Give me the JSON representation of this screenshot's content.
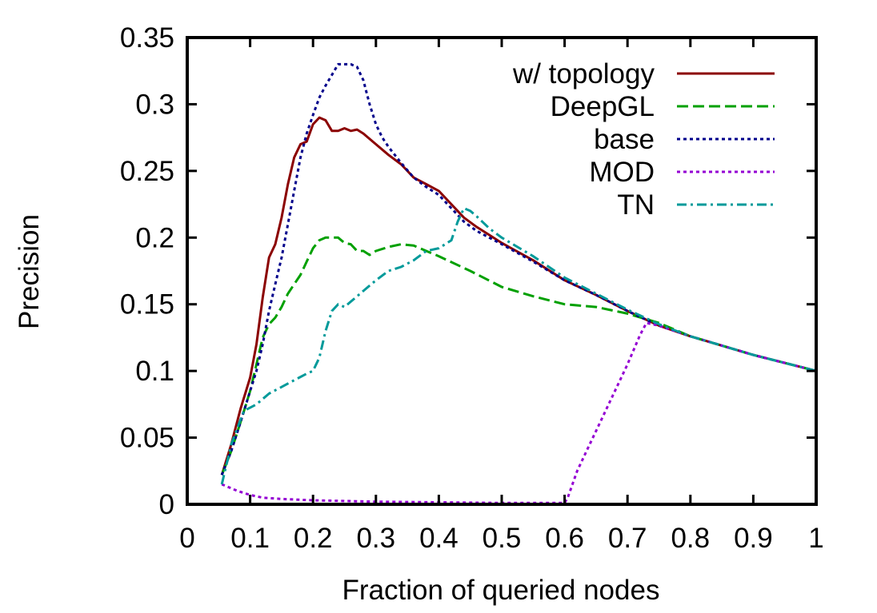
{
  "chart_data": {
    "type": "line",
    "title": "",
    "xlabel": "Fraction of queried nodes",
    "ylabel": "Precision",
    "xlim": [
      0,
      1
    ],
    "ylim": [
      0,
      0.35
    ],
    "xticks": [
      "0",
      "0.1",
      "0.2",
      "0.3",
      "0.4",
      "0.5",
      "0.6",
      "0.7",
      "0.8",
      "0.9",
      "1"
    ],
    "yticks": [
      "0",
      "0.05",
      "0.1",
      "0.15",
      "0.2",
      "0.25",
      "0.3",
      "0.35"
    ],
    "grid": false,
    "legend_position": "top-right",
    "series": [
      {
        "name": "w/ topology",
        "color": "#8b0000",
        "dash": "solid",
        "points": [
          [
            0.055,
            0.022
          ],
          [
            0.07,
            0.045
          ],
          [
            0.085,
            0.072
          ],
          [
            0.1,
            0.095
          ],
          [
            0.11,
            0.12
          ],
          [
            0.12,
            0.155
          ],
          [
            0.13,
            0.185
          ],
          [
            0.14,
            0.195
          ],
          [
            0.15,
            0.215
          ],
          [
            0.16,
            0.24
          ],
          [
            0.17,
            0.26
          ],
          [
            0.18,
            0.27
          ],
          [
            0.19,
            0.272
          ],
          [
            0.2,
            0.285
          ],
          [
            0.21,
            0.29
          ],
          [
            0.22,
            0.288
          ],
          [
            0.23,
            0.28
          ],
          [
            0.24,
            0.28
          ],
          [
            0.25,
            0.282
          ],
          [
            0.26,
            0.28
          ],
          [
            0.27,
            0.281
          ],
          [
            0.28,
            0.278
          ],
          [
            0.3,
            0.27
          ],
          [
            0.32,
            0.262
          ],
          [
            0.34,
            0.255
          ],
          [
            0.36,
            0.245
          ],
          [
            0.38,
            0.24
          ],
          [
            0.4,
            0.235
          ],
          [
            0.42,
            0.225
          ],
          [
            0.44,
            0.215
          ],
          [
            0.46,
            0.208
          ],
          [
            0.48,
            0.202
          ],
          [
            0.5,
            0.196
          ],
          [
            0.55,
            0.183
          ],
          [
            0.6,
            0.168
          ],
          [
            0.65,
            0.157
          ],
          [
            0.7,
            0.145
          ],
          [
            0.75,
            0.134
          ],
          [
            0.8,
            0.126
          ],
          [
            0.85,
            0.119
          ],
          [
            0.9,
            0.112
          ],
          [
            0.95,
            0.106
          ],
          [
            1.0,
            0.1
          ]
        ]
      },
      {
        "name": "DeepGL",
        "color": "#00a000",
        "dash": "dashed",
        "points": [
          [
            0.055,
            0.022
          ],
          [
            0.07,
            0.04
          ],
          [
            0.085,
            0.062
          ],
          [
            0.1,
            0.085
          ],
          [
            0.11,
            0.105
          ],
          [
            0.12,
            0.125
          ],
          [
            0.13,
            0.135
          ],
          [
            0.14,
            0.14
          ],
          [
            0.15,
            0.148
          ],
          [
            0.16,
            0.158
          ],
          [
            0.17,
            0.165
          ],
          [
            0.18,
            0.172
          ],
          [
            0.19,
            0.182
          ],
          [
            0.2,
            0.192
          ],
          [
            0.21,
            0.198
          ],
          [
            0.22,
            0.2
          ],
          [
            0.23,
            0.2
          ],
          [
            0.24,
            0.2
          ],
          [
            0.25,
            0.196
          ],
          [
            0.26,
            0.195
          ],
          [
            0.27,
            0.19
          ],
          [
            0.28,
            0.19
          ],
          [
            0.29,
            0.187
          ],
          [
            0.3,
            0.19
          ],
          [
            0.32,
            0.193
          ],
          [
            0.34,
            0.195
          ],
          [
            0.36,
            0.194
          ],
          [
            0.38,
            0.19
          ],
          [
            0.4,
            0.186
          ],
          [
            0.45,
            0.175
          ],
          [
            0.5,
            0.163
          ],
          [
            0.55,
            0.156
          ],
          [
            0.6,
            0.15
          ],
          [
            0.65,
            0.148
          ],
          [
            0.7,
            0.143
          ],
          [
            0.75,
            0.136
          ],
          [
            0.8,
            0.126
          ],
          [
            0.85,
            0.119
          ],
          [
            0.9,
            0.112
          ],
          [
            0.95,
            0.106
          ],
          [
            1.0,
            0.1
          ]
        ]
      },
      {
        "name": "base",
        "color": "#00008b",
        "dash": "dotted",
        "points": [
          [
            0.055,
            0.022
          ],
          [
            0.07,
            0.04
          ],
          [
            0.085,
            0.062
          ],
          [
            0.1,
            0.085
          ],
          [
            0.11,
            0.1
          ],
          [
            0.12,
            0.12
          ],
          [
            0.13,
            0.145
          ],
          [
            0.14,
            0.165
          ],
          [
            0.15,
            0.185
          ],
          [
            0.16,
            0.21
          ],
          [
            0.17,
            0.235
          ],
          [
            0.18,
            0.26
          ],
          [
            0.19,
            0.278
          ],
          [
            0.2,
            0.292
          ],
          [
            0.21,
            0.305
          ],
          [
            0.22,
            0.314
          ],
          [
            0.23,
            0.322
          ],
          [
            0.24,
            0.33
          ],
          [
            0.25,
            0.33
          ],
          [
            0.26,
            0.33
          ],
          [
            0.27,
            0.328
          ],
          [
            0.28,
            0.318
          ],
          [
            0.29,
            0.3
          ],
          [
            0.3,
            0.285
          ],
          [
            0.31,
            0.275
          ],
          [
            0.32,
            0.268
          ],
          [
            0.34,
            0.256
          ],
          [
            0.36,
            0.245
          ],
          [
            0.38,
            0.238
          ],
          [
            0.4,
            0.232
          ],
          [
            0.42,
            0.222
          ],
          [
            0.44,
            0.212
          ],
          [
            0.46,
            0.205
          ],
          [
            0.48,
            0.2
          ],
          [
            0.5,
            0.195
          ],
          [
            0.55,
            0.182
          ],
          [
            0.6,
            0.168
          ],
          [
            0.65,
            0.157
          ],
          [
            0.7,
            0.145
          ],
          [
            0.75,
            0.134
          ],
          [
            0.8,
            0.126
          ],
          [
            0.85,
            0.119
          ],
          [
            0.9,
            0.112
          ],
          [
            0.95,
            0.106
          ],
          [
            1.0,
            0.1
          ]
        ]
      },
      {
        "name": "MOD",
        "color": "#9400d3",
        "dash": "dotted",
        "points": [
          [
            0.055,
            0.015
          ],
          [
            0.08,
            0.01
          ],
          [
            0.1,
            0.007
          ],
          [
            0.12,
            0.005
          ],
          [
            0.15,
            0.004
          ],
          [
            0.2,
            0.003
          ],
          [
            0.3,
            0.002
          ],
          [
            0.4,
            0.0015
          ],
          [
            0.5,
            0.001
          ],
          [
            0.6,
            0.001
          ],
          [
            0.605,
            0.005
          ],
          [
            0.62,
            0.025
          ],
          [
            0.64,
            0.045
          ],
          [
            0.66,
            0.065
          ],
          [
            0.68,
            0.085
          ],
          [
            0.7,
            0.105
          ],
          [
            0.72,
            0.127
          ],
          [
            0.73,
            0.136
          ],
          [
            0.75,
            0.134
          ],
          [
            0.8,
            0.126
          ],
          [
            0.85,
            0.119
          ],
          [
            0.9,
            0.112
          ],
          [
            0.95,
            0.106
          ],
          [
            1.0,
            0.1
          ]
        ]
      },
      {
        "name": "TN",
        "color": "#009a9a",
        "dash": "dashdot",
        "points": [
          [
            0.055,
            0.015
          ],
          [
            0.07,
            0.045
          ],
          [
            0.09,
            0.07
          ],
          [
            0.11,
            0.075
          ],
          [
            0.13,
            0.083
          ],
          [
            0.15,
            0.088
          ],
          [
            0.17,
            0.093
          ],
          [
            0.19,
            0.098
          ],
          [
            0.2,
            0.1
          ],
          [
            0.21,
            0.11
          ],
          [
            0.22,
            0.13
          ],
          [
            0.23,
            0.145
          ],
          [
            0.24,
            0.15
          ],
          [
            0.25,
            0.148
          ],
          [
            0.26,
            0.152
          ],
          [
            0.28,
            0.16
          ],
          [
            0.3,
            0.168
          ],
          [
            0.32,
            0.175
          ],
          [
            0.34,
            0.178
          ],
          [
            0.36,
            0.183
          ],
          [
            0.38,
            0.19
          ],
          [
            0.4,
            0.192
          ],
          [
            0.41,
            0.195
          ],
          [
            0.42,
            0.198
          ],
          [
            0.43,
            0.212
          ],
          [
            0.44,
            0.222
          ],
          [
            0.45,
            0.22
          ],
          [
            0.46,
            0.216
          ],
          [
            0.48,
            0.207
          ],
          [
            0.5,
            0.2
          ],
          [
            0.55,
            0.186
          ],
          [
            0.6,
            0.17
          ],
          [
            0.65,
            0.158
          ],
          [
            0.7,
            0.146
          ],
          [
            0.75,
            0.135
          ],
          [
            0.8,
            0.126
          ],
          [
            0.85,
            0.119
          ],
          [
            0.9,
            0.112
          ],
          [
            0.95,
            0.106
          ],
          [
            1.0,
            0.1
          ]
        ]
      }
    ]
  }
}
